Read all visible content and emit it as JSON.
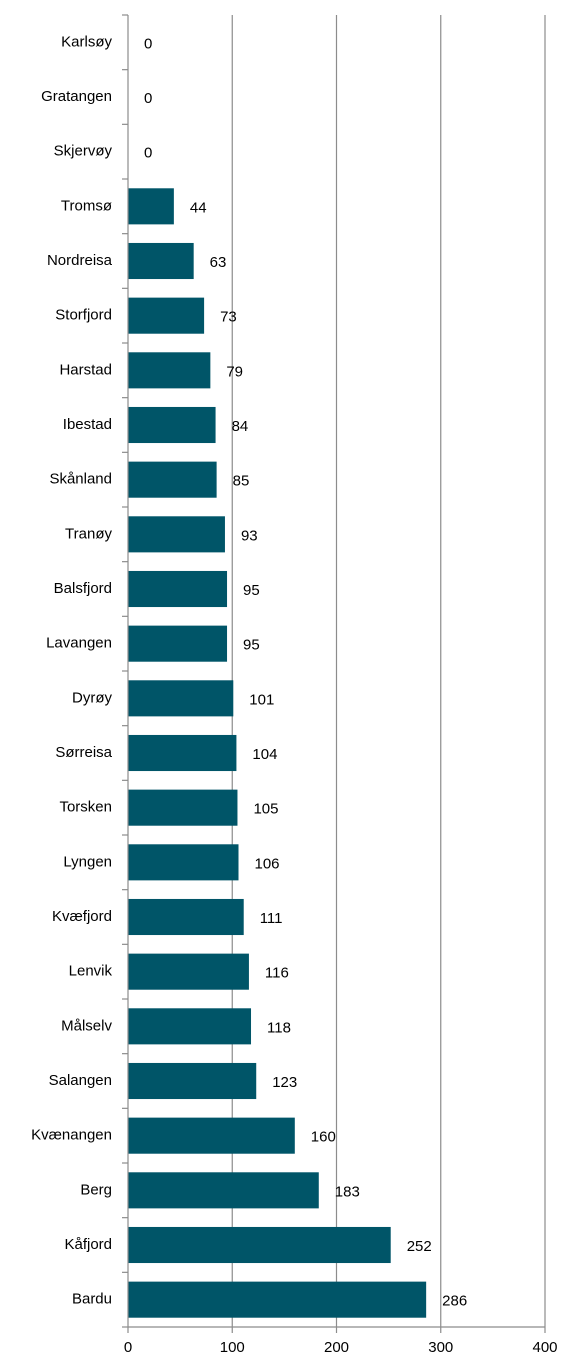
{
  "chart_data": {
    "type": "bar",
    "orientation": "horizontal",
    "categories": [
      "Karlsøy",
      "Gratangen",
      "Skjervøy",
      "Tromsø",
      "Nordreisa",
      "Storfjord",
      "Harstad",
      "Ibestad",
      "Skånland",
      "Tranøy",
      "Balsfjord",
      "Lavangen",
      "Dyrøy",
      "Sørreisa",
      "Torsken",
      "Lyngen",
      "Kvæfjord",
      "Lenvik",
      "Målselv",
      "Salangen",
      "Kvænangen",
      "Berg",
      "Kåfjord",
      "Bardu"
    ],
    "values": [
      0,
      0,
      0,
      44,
      63,
      73,
      79,
      84,
      85,
      93,
      95,
      95,
      101,
      104,
      105,
      106,
      111,
      116,
      118,
      123,
      160,
      183,
      252,
      286
    ],
    "data_labels": [
      "0",
      "0",
      "0",
      "44",
      "63",
      "73",
      "79",
      "84",
      "85",
      "93",
      "95",
      "95",
      "101",
      "104",
      "105",
      "106",
      "111",
      "116",
      "118",
      "123",
      "160",
      "183",
      "252",
      "286"
    ],
    "xlim": [
      0,
      400
    ],
    "x_ticks": [
      "0",
      "100",
      "200",
      "300",
      "400"
    ],
    "grid": "vertical",
    "bar_color": "#005568",
    "title": "",
    "xlabel": "",
    "ylabel": ""
  }
}
